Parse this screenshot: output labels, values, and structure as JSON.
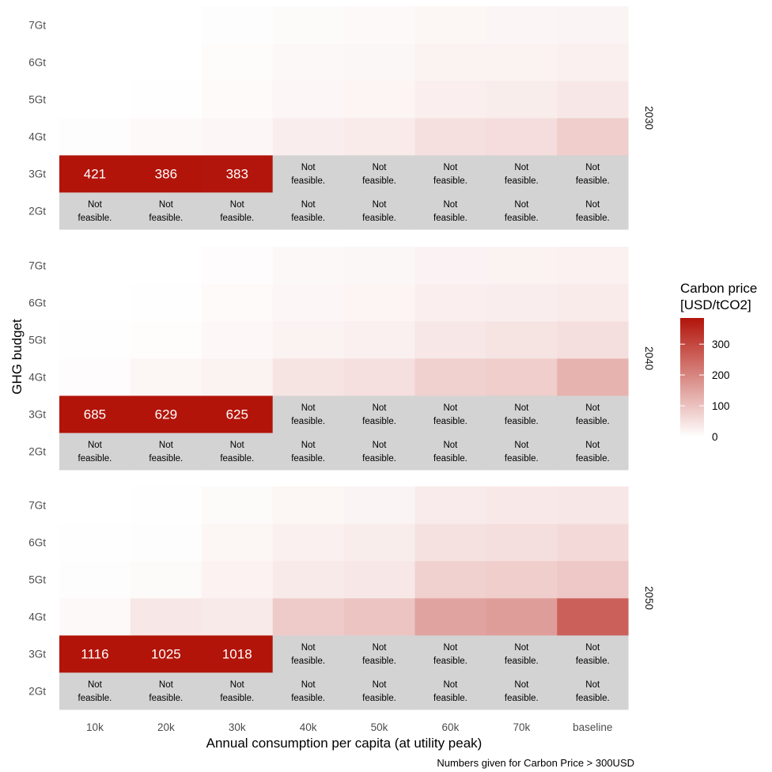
{
  "chart_data": {
    "type": "heatmap",
    "xlabel": "Annual consumption per capita (at utility peak)",
    "ylabel": "GHG budget",
    "caption": "Numbers given for Carbon Price > 300USD",
    "categories": [
      "10k",
      "20k",
      "30k",
      "40k",
      "50k",
      "60k",
      "70k",
      "baseline"
    ],
    "y_categories": [
      "2Gt",
      "3Gt",
      "4Gt",
      "5Gt",
      "6Gt",
      "7Gt"
    ],
    "not_feasible_label": "Not feasible.",
    "legend": {
      "title_lines": [
        "Carbon price",
        "[USD/tCO2]"
      ],
      "ticks": [
        0,
        100,
        200,
        300
      ],
      "range": [
        0,
        385
      ],
      "colors": [
        "#ffffff",
        "#b2140a"
      ],
      "placement": "right"
    },
    "panels": [
      {
        "label": "2030",
        "rows": {
          "7Gt": [
            0,
            0,
            3,
            8,
            10,
            15,
            16,
            18
          ],
          "6Gt": [
            0,
            0,
            6,
            11,
            13,
            20,
            21,
            24
          ],
          "5Gt": [
            0,
            2,
            9,
            14,
            17,
            27,
            30,
            38
          ],
          "4Gt": [
            3,
            10,
            14,
            28,
            33,
            50,
            55,
            80
          ],
          "3Gt": [
            421,
            386,
            383,
            null,
            null,
            null,
            null,
            null
          ],
          "2Gt": [
            null,
            null,
            null,
            null,
            null,
            null,
            null,
            null
          ]
        }
      },
      {
        "label": "2040",
        "rows": {
          "7Gt": [
            0,
            0,
            5,
            11,
            13,
            19,
            21,
            23
          ],
          "6Gt": [
            0,
            1,
            9,
            14,
            17,
            27,
            29,
            33
          ],
          "5Gt": [
            1,
            4,
            12,
            20,
            24,
            40,
            44,
            52
          ],
          "4Gt": [
            5,
            15,
            20,
            45,
            50,
            75,
            80,
            125
          ],
          "3Gt": [
            685,
            629,
            625,
            null,
            null,
            null,
            null,
            null
          ],
          "2Gt": [
            null,
            null,
            null,
            null,
            null,
            null,
            null,
            null
          ]
        }
      },
      {
        "label": "2050",
        "rows": {
          "7Gt": [
            0,
            1,
            8,
            15,
            18,
            32,
            36,
            40
          ],
          "6Gt": [
            1,
            3,
            15,
            25,
            30,
            48,
            52,
            60
          ],
          "5Gt": [
            3,
            8,
            22,
            35,
            40,
            75,
            80,
            90
          ],
          "4Gt": [
            10,
            40,
            35,
            85,
            95,
            150,
            160,
            260
          ],
          "3Gt": [
            1116,
            1025,
            1018,
            null,
            null,
            null,
            null,
            null
          ],
          "2Gt": [
            null,
            null,
            null,
            null,
            null,
            null,
            null,
            null
          ]
        }
      }
    ]
  }
}
